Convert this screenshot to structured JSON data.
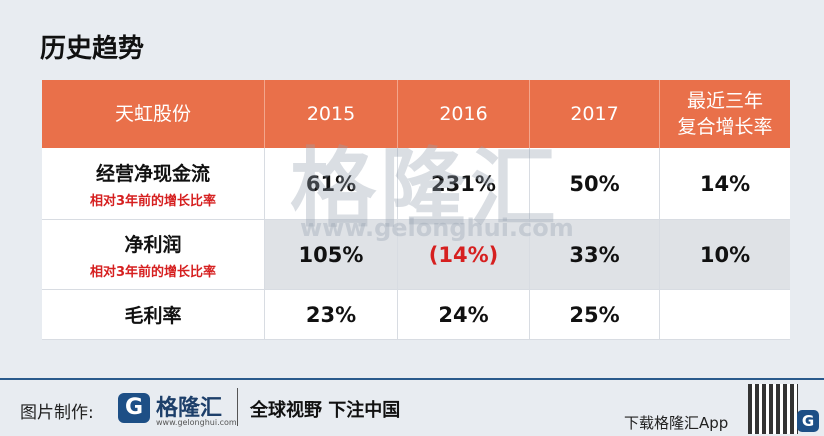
{
  "header": {
    "title": "历史趋势"
  },
  "table": {
    "columns": [
      "天虹股份",
      "2015",
      "2016",
      "2017",
      [
        "最近三年",
        "复合增长率"
      ]
    ],
    "rows": [
      {
        "label": "经营净现金流",
        "note": "相对3年前的增长比率",
        "cells": [
          "61%",
          "231%",
          "50%",
          "14%"
        ]
      },
      {
        "label": "净利润",
        "note": "相对3年前的增长比率",
        "cells": [
          "105%",
          "(14%)",
          "33%",
          "10%"
        ]
      },
      {
        "label": "毛利率",
        "cells": [
          "23%",
          "24%",
          "25%"
        ]
      }
    ]
  },
  "watermark": {
    "name": "格隆汇",
    "url": "www.gelonghui.com"
  },
  "footer": {
    "made_by": "图片制作:",
    "logo": "格隆汇",
    "logo_url": "www.gelonghui.com",
    "slogan": "全球视野 下注中国",
    "download": "下载格隆汇App"
  }
}
